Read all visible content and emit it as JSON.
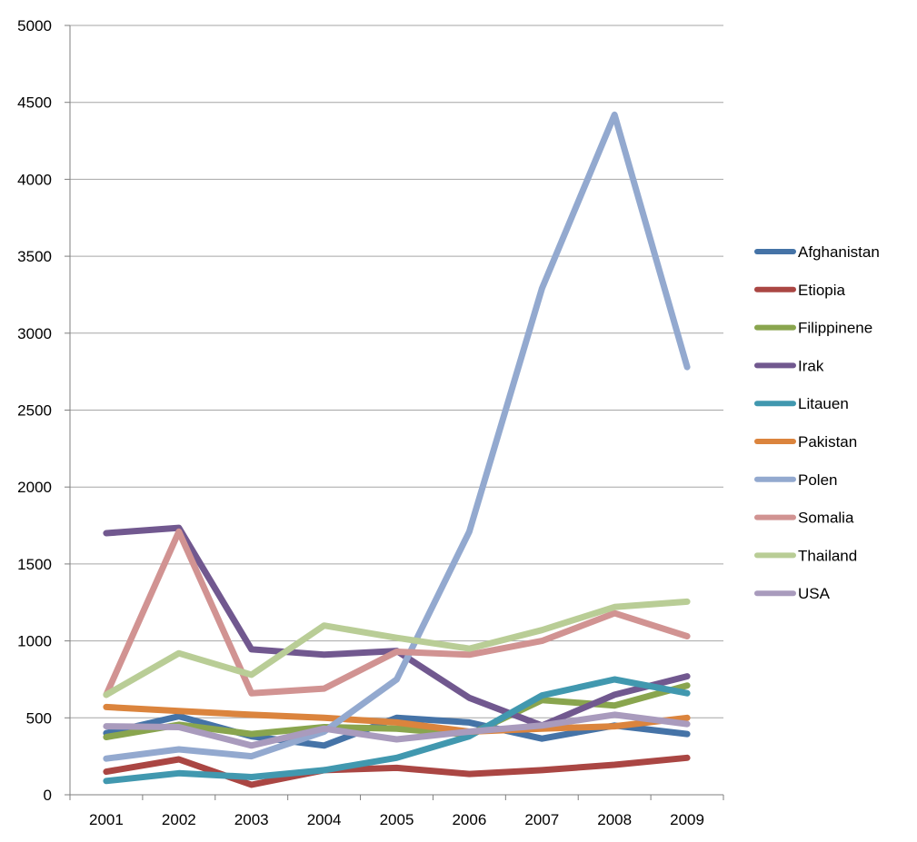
{
  "chart_data": {
    "type": "line",
    "title": "",
    "xlabel": "",
    "ylabel": "",
    "x": [
      "2001",
      "2002",
      "2003",
      "2004",
      "2005",
      "2006",
      "2007",
      "2008",
      "2009"
    ],
    "ylim": [
      0,
      5000
    ],
    "yticks": [
      "0",
      "500",
      "1000",
      "1500",
      "2000",
      "2500",
      "3000",
      "3500",
      "4000",
      "4500",
      "5000"
    ],
    "grid": "horizontal",
    "legend_position": "right",
    "series": [
      {
        "name": "Afghanistan",
        "color": "#4573a7",
        "values": [
          400,
          510,
          380,
          320,
          500,
          470,
          365,
          450,
          395
        ]
      },
      {
        "name": "Etiopia",
        "color": "#aa4643",
        "values": [
          150,
          230,
          65,
          160,
          175,
          135,
          160,
          195,
          240
        ]
      },
      {
        "name": "Filippinene",
        "color": "#89a54e",
        "values": [
          375,
          455,
          395,
          440,
          430,
          390,
          615,
          580,
          710
        ]
      },
      {
        "name": "Irak",
        "color": "#71588f",
        "values": [
          1700,
          1735,
          945,
          910,
          935,
          630,
          450,
          650,
          770
        ]
      },
      {
        "name": "Litauen",
        "color": "#4198af",
        "values": [
          90,
          140,
          115,
          160,
          240,
          380,
          645,
          750,
          660
        ]
      },
      {
        "name": "Pakistan",
        "color": "#db843d",
        "values": [
          570,
          545,
          520,
          500,
          470,
          410,
          430,
          445,
          500
        ]
      },
      {
        "name": "Polen",
        "color": "#93a9cf",
        "values": [
          235,
          295,
          250,
          410,
          750,
          1710,
          3290,
          4420,
          2780
        ]
      },
      {
        "name": "Somalia",
        "color": "#d19392",
        "values": [
          650,
          1710,
          660,
          690,
          930,
          910,
          1000,
          1180,
          1030
        ]
      },
      {
        "name": "Thailand",
        "color": "#b9cd96",
        "values": [
          650,
          920,
          780,
          1100,
          1020,
          950,
          1070,
          1220,
          1255
        ]
      },
      {
        "name": "USA",
        "color": "#a99bbd",
        "values": [
          445,
          440,
          320,
          430,
          360,
          410,
          450,
          520,
          460
        ]
      }
    ]
  }
}
